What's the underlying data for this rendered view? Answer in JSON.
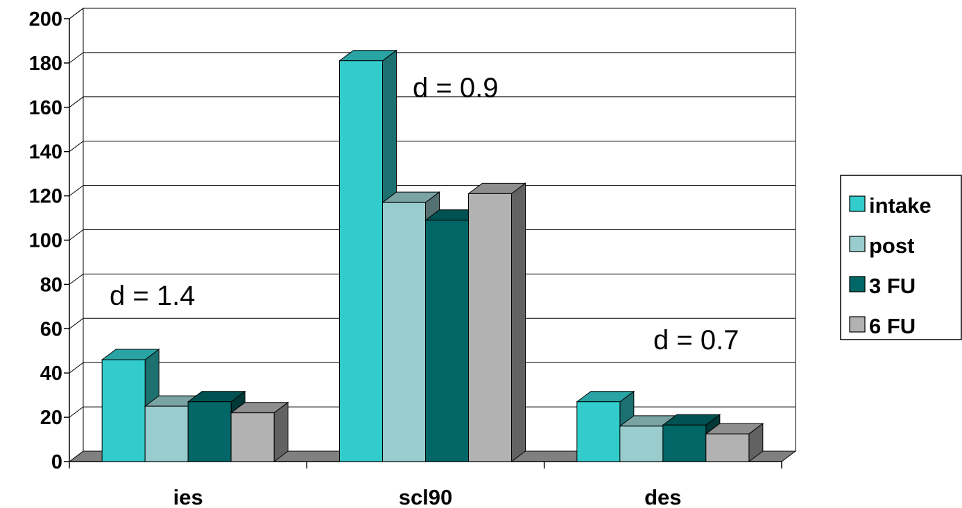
{
  "chart_data": {
    "type": "bar",
    "categories": [
      "ies",
      "scl90",
      "des"
    ],
    "series": [
      {
        "name": "intake",
        "values": [
          46,
          181,
          27
        ],
        "color": "#33cccc"
      },
      {
        "name": "post",
        "values": [
          25,
          117,
          16
        ],
        "color": "#99cccc"
      },
      {
        "name": "3 FU",
        "values": [
          27,
          109,
          16.5
        ],
        "color": "#006666"
      },
      {
        "name": "6 FU",
        "values": [
          22,
          121,
          12.5
        ],
        "color": "#b2b2b2"
      }
    ],
    "ylim": [
      0,
      200
    ],
    "yticks": [
      "0",
      "20",
      "40",
      "60",
      "80",
      "100",
      "120",
      "140",
      "160",
      "180",
      "200"
    ],
    "annotations": [
      {
        "text": "d = 1.4",
        "category": "ies"
      },
      {
        "text": "d = 0.9",
        "category": "scl90"
      },
      {
        "text": "d = 0.7",
        "category": "des"
      }
    ],
    "grid": true,
    "three_d": true,
    "legend_position": "right"
  }
}
